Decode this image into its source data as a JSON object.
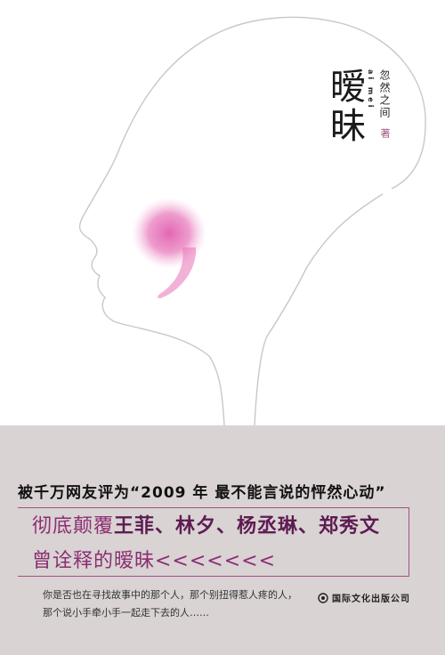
{
  "cover": {
    "title": "暧昧",
    "pinyin": "ai mei",
    "author": "忽然之间",
    "author_suffix": "著",
    "colors": {
      "band": "#d9d3d4",
      "accent": "#8c2e72",
      "accent_dark": "#5e1c52",
      "frame": "#a0527f",
      "comma": "#e05fae"
    }
  },
  "promo": {
    "tagline": "被千万网友评为“2009 年 最不能言说的怦然心动”",
    "line1_prefix": "彻底颠覆",
    "line1_names": "王菲、林夕、杨丞琳、郑秀文",
    "line2": "曾诠释的暧昧<<<<<<<",
    "blurb_line1": "你是否也在寻找故事中的那个人，那个别扭得惹人疼的人，",
    "blurb_line2": "那个说小手牵小手一起走下去的人……"
  },
  "publisher": {
    "name": "国际文化出版公司",
    "icon": "publisher-logo-icon"
  }
}
